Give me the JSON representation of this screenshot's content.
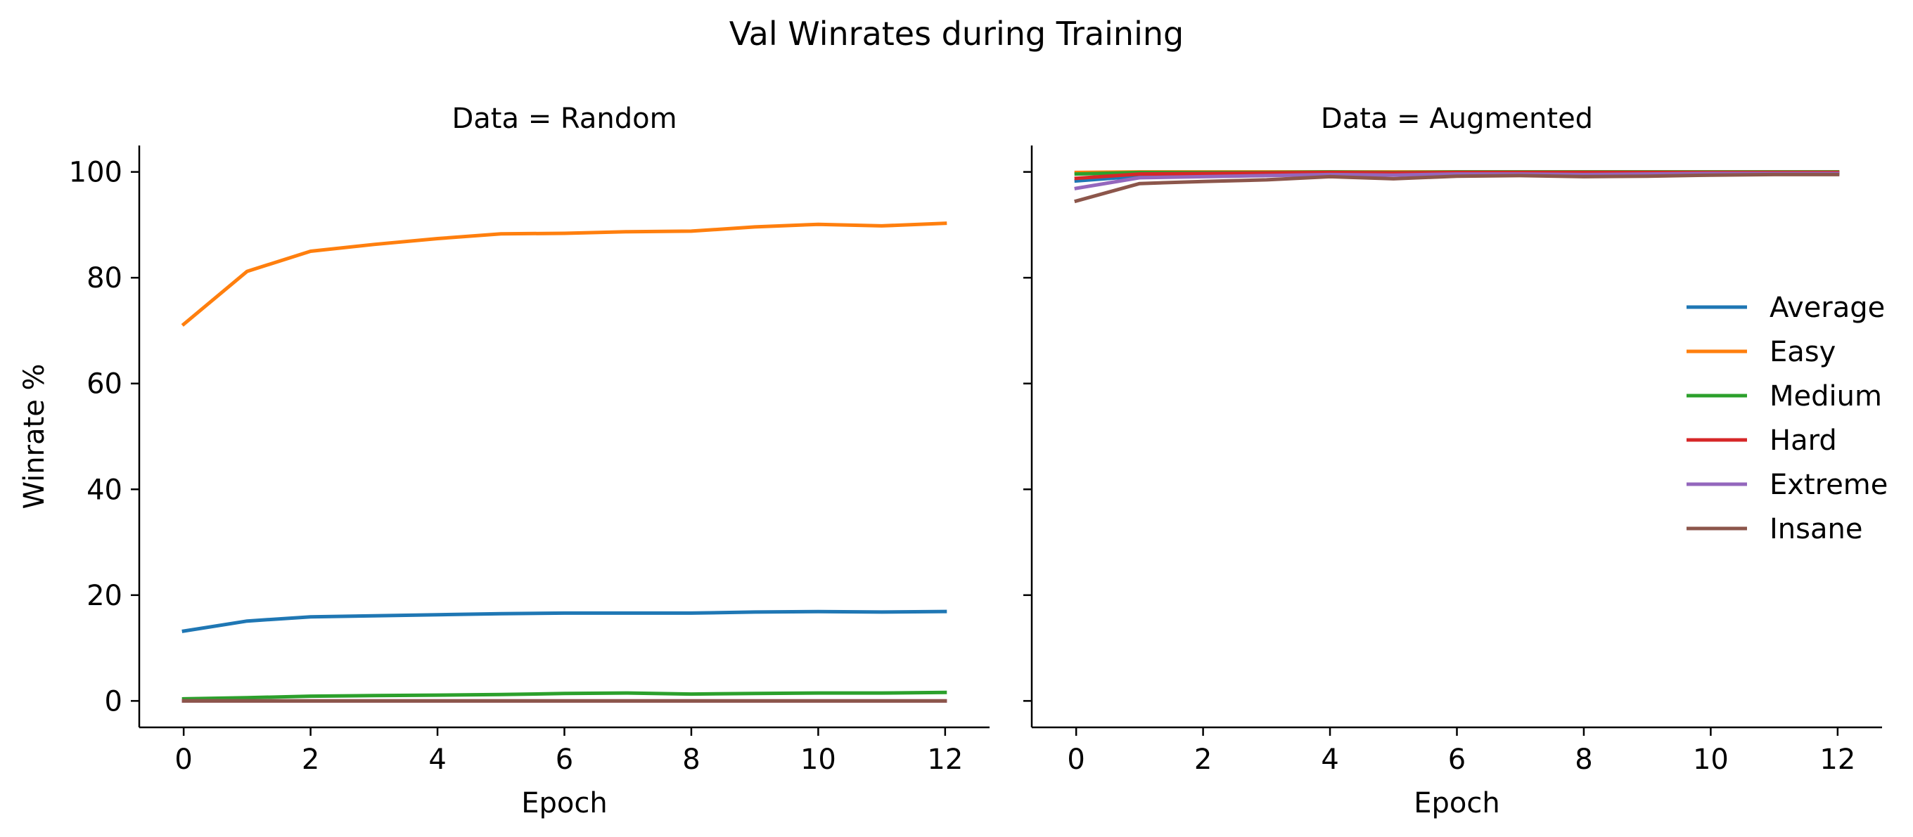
{
  "figure": {
    "title": "Val Winrates during Training"
  },
  "chart_data": [
    {
      "type": "line",
      "title": "Data = Random",
      "xlabel": "Epoch",
      "ylabel": "Winrate %",
      "xlim": [
        -0.7,
        12.7
      ],
      "ylim": [
        -5,
        105
      ],
      "xticks": [
        0,
        2,
        4,
        6,
        8,
        10,
        12
      ],
      "yticks": [
        0,
        20,
        40,
        60,
        80,
        100
      ],
      "grid": false,
      "x": [
        0,
        1,
        2,
        3,
        4,
        5,
        6,
        7,
        8,
        9,
        10,
        11,
        12
      ],
      "series": [
        {
          "name": "Average",
          "color": "#1f77b4",
          "values": [
            13.2,
            15.1,
            15.9,
            16.1,
            16.3,
            16.5,
            16.6,
            16.6,
            16.6,
            16.8,
            16.9,
            16.8,
            16.9
          ]
        },
        {
          "name": "Easy",
          "color": "#ff7f0e",
          "values": [
            71.2,
            81.2,
            85.0,
            86.3,
            87.4,
            88.3,
            88.4,
            88.7,
            88.8,
            89.6,
            90.1,
            89.8,
            90.3
          ]
        },
        {
          "name": "Medium",
          "color": "#2ca02c",
          "values": [
            0.4,
            0.6,
            0.9,
            1.0,
            1.1,
            1.2,
            1.4,
            1.5,
            1.3,
            1.4,
            1.5,
            1.5,
            1.6
          ]
        },
        {
          "name": "Hard",
          "color": "#d62728",
          "values": [
            0.0,
            0.0,
            0.0,
            0.0,
            0.0,
            0.0,
            0.0,
            0.0,
            0.0,
            0.0,
            0.0,
            0.0,
            0.0
          ]
        },
        {
          "name": "Extreme",
          "color": "#9467bd",
          "values": [
            0.0,
            0.0,
            0.0,
            0.0,
            0.0,
            0.0,
            0.0,
            0.0,
            0.0,
            0.0,
            0.0,
            0.0,
            0.0
          ]
        },
        {
          "name": "Insane",
          "color": "#8c564b",
          "values": [
            0.0,
            0.0,
            0.0,
            0.0,
            0.0,
            0.0,
            0.0,
            0.0,
            0.0,
            0.0,
            0.0,
            0.0,
            0.0
          ]
        }
      ]
    },
    {
      "type": "line",
      "title": "Data = Augmented",
      "xlabel": "Epoch",
      "ylabel": "",
      "xlim": [
        -0.7,
        12.7
      ],
      "ylim": [
        -5,
        105
      ],
      "xticks": [
        0,
        2,
        4,
        6,
        8,
        10,
        12
      ],
      "yticks": [
        0,
        20,
        40,
        60,
        80,
        100
      ],
      "grid": false,
      "legend": "center-right",
      "x": [
        0,
        1,
        2,
        3,
        4,
        5,
        6,
        7,
        8,
        9,
        10,
        11,
        12
      ],
      "series": [
        {
          "name": "Average",
          "color": "#1f77b4",
          "values": [
            98.3,
            99.2,
            99.3,
            99.5,
            99.6,
            99.5,
            99.7,
            99.7,
            99.6,
            99.7,
            99.8,
            99.8,
            99.8
          ]
        },
        {
          "name": "Easy",
          "color": "#ff7f0e",
          "values": [
            99.9,
            100.0,
            100.0,
            100.0,
            100.0,
            100.0,
            100.0,
            100.0,
            100.0,
            100.0,
            100.0,
            100.0,
            100.0
          ]
        },
        {
          "name": "Medium",
          "color": "#2ca02c",
          "values": [
            99.6,
            99.9,
            99.9,
            99.9,
            100.0,
            99.9,
            100.0,
            100.0,
            100.0,
            100.0,
            100.0,
            100.0,
            100.0
          ]
        },
        {
          "name": "Hard",
          "color": "#d62728",
          "values": [
            98.8,
            99.6,
            99.7,
            99.8,
            99.9,
            99.8,
            99.9,
            99.9,
            99.9,
            99.9,
            99.9,
            99.9,
            99.9
          ]
        },
        {
          "name": "Extreme",
          "color": "#9467bd",
          "values": [
            96.9,
            98.9,
            99.1,
            99.3,
            99.5,
            99.4,
            99.6,
            99.6,
            99.5,
            99.6,
            99.7,
            99.7,
            99.7
          ]
        },
        {
          "name": "Insane",
          "color": "#8c564b",
          "values": [
            94.5,
            97.8,
            98.2,
            98.5,
            99.1,
            98.7,
            99.2,
            99.3,
            99.1,
            99.2,
            99.4,
            99.5,
            99.5
          ]
        }
      ]
    }
  ]
}
